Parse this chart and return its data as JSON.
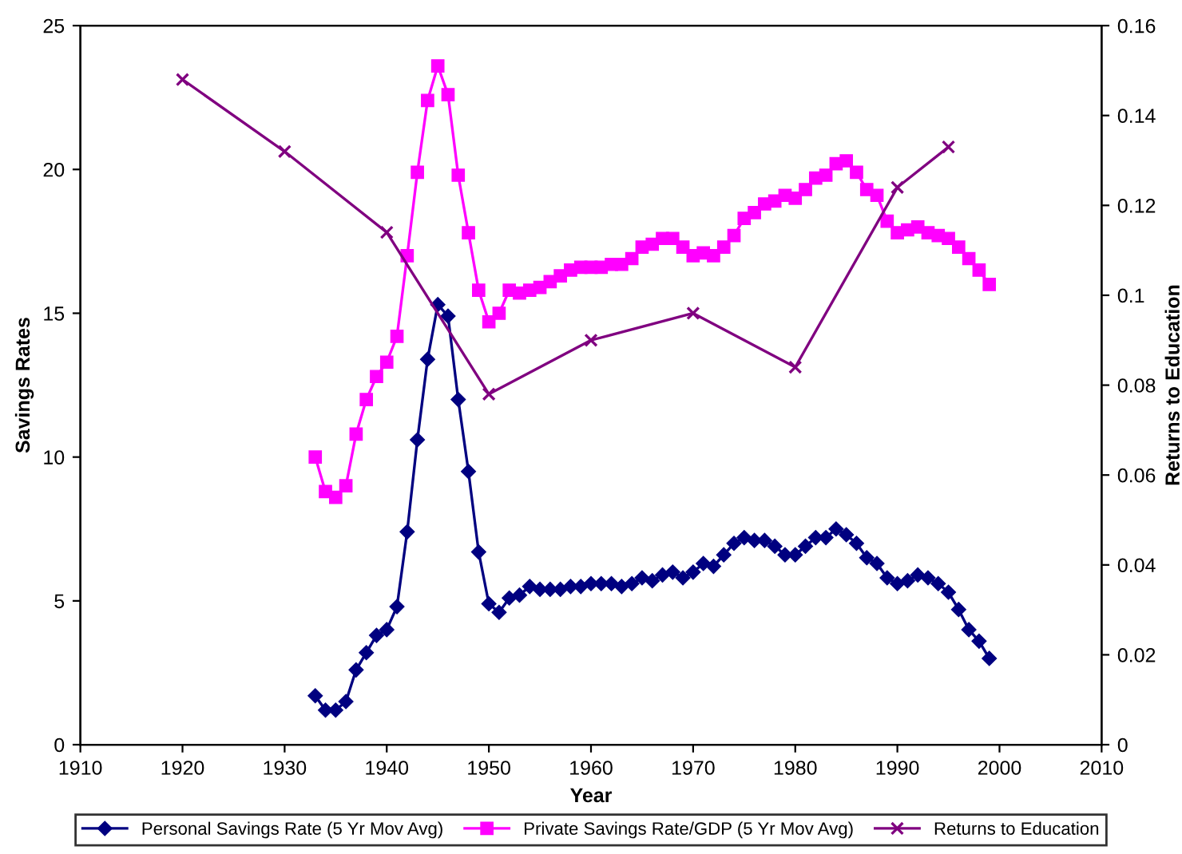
{
  "chart_data": {
    "type": "line",
    "xlabel": "Year",
    "ylabel": "Savings Rates",
    "y2label": "Returns to Education",
    "xlim": [
      1910,
      2010
    ],
    "xticks": [
      1910,
      1920,
      1930,
      1940,
      1950,
      1960,
      1970,
      1980,
      1990,
      2000,
      2010
    ],
    "ylim": [
      0,
      25
    ],
    "yticks": [
      0,
      5,
      10,
      15,
      20,
      25
    ],
    "y2lim": [
      0,
      0.16
    ],
    "y2ticks": [
      0,
      0.02,
      0.04,
      0.06,
      0.08,
      0.1,
      0.12,
      0.14,
      0.16
    ],
    "grid": false,
    "legend": "bottom",
    "series": [
      {
        "name": "Personal Savings Rate (5 Yr Mov Avg)",
        "color": "#000080",
        "marker": "diamond",
        "x": [
          1933,
          1934,
          1935,
          1936,
          1937,
          1938,
          1939,
          1940,
          1941,
          1942,
          1943,
          1944,
          1945,
          1946,
          1947,
          1948,
          1949,
          1950,
          1951,
          1952,
          1953,
          1954,
          1955,
          1956,
          1957,
          1958,
          1959,
          1960,
          1961,
          1962,
          1963,
          1964,
          1965,
          1966,
          1967,
          1968,
          1969,
          1970,
          1971,
          1972,
          1973,
          1974,
          1975,
          1976,
          1977,
          1978,
          1979,
          1980,
          1981,
          1982,
          1983,
          1984,
          1985,
          1986,
          1987,
          1988,
          1989,
          1990,
          1991,
          1992,
          1993,
          1994,
          1995,
          1996,
          1997,
          1998,
          1999
        ],
        "values": [
          1.7,
          1.2,
          1.2,
          1.5,
          2.6,
          3.2,
          3.8,
          4.0,
          4.8,
          7.4,
          10.6,
          13.4,
          15.3,
          14.9,
          12.0,
          9.5,
          6.7,
          4.9,
          4.6,
          5.1,
          5.2,
          5.5,
          5.4,
          5.4,
          5.4,
          5.5,
          5.5,
          5.6,
          5.6,
          5.6,
          5.5,
          5.6,
          5.8,
          5.7,
          5.9,
          6.0,
          5.8,
          6.0,
          6.3,
          6.2,
          6.6,
          7.0,
          7.2,
          7.1,
          7.1,
          6.9,
          6.6,
          6.6,
          6.9,
          7.2,
          7.2,
          7.5,
          7.3,
          7.0,
          6.5,
          6.3,
          5.8,
          5.6,
          5.7,
          5.9,
          5.8,
          5.6,
          5.3,
          4.7,
          4.0,
          3.6,
          3.0
        ]
      },
      {
        "name": "Private Savings Rate/GDP (5 Yr Mov Avg)",
        "color": "#ff00ff",
        "marker": "square",
        "x": [
          1933,
          1934,
          1935,
          1936,
          1937,
          1938,
          1939,
          1940,
          1941,
          1942,
          1943,
          1944,
          1945,
          1946,
          1947,
          1948,
          1949,
          1950,
          1951,
          1952,
          1953,
          1954,
          1955,
          1956,
          1957,
          1958,
          1959,
          1960,
          1961,
          1962,
          1963,
          1964,
          1965,
          1966,
          1967,
          1968,
          1969,
          1970,
          1971,
          1972,
          1973,
          1974,
          1975,
          1976,
          1977,
          1978,
          1979,
          1980,
          1981,
          1982,
          1983,
          1984,
          1985,
          1986,
          1987,
          1988,
          1989,
          1990,
          1991,
          1992,
          1993,
          1994,
          1995,
          1996,
          1997,
          1998,
          1999
        ],
        "values": [
          10.0,
          8.8,
          8.6,
          9.0,
          10.8,
          12.0,
          12.8,
          13.3,
          14.2,
          17.0,
          19.9,
          22.4,
          23.6,
          22.6,
          19.8,
          17.8,
          15.8,
          14.7,
          15.0,
          15.8,
          15.7,
          15.8,
          15.9,
          16.1,
          16.3,
          16.5,
          16.6,
          16.6,
          16.6,
          16.7,
          16.7,
          16.9,
          17.3,
          17.4,
          17.6,
          17.6,
          17.3,
          17.0,
          17.1,
          17.0,
          17.3,
          17.7,
          18.3,
          18.5,
          18.8,
          18.9,
          19.1,
          19.0,
          19.3,
          19.7,
          19.8,
          20.2,
          20.3,
          19.9,
          19.3,
          19.1,
          18.2,
          17.8,
          17.9,
          18.0,
          17.8,
          17.7,
          17.6,
          17.3,
          16.9,
          16.5,
          16.0
        ]
      },
      {
        "name": "Returns to Education",
        "color": "#800080",
        "marker": "cross",
        "axis": "y2",
        "x": [
          1920,
          1930,
          1940,
          1950,
          1960,
          1970,
          1980,
          1990,
          1995
        ],
        "values": [
          0.148,
          0.132,
          0.114,
          0.078,
          0.09,
          0.096,
          0.084,
          0.124,
          0.133
        ]
      }
    ]
  }
}
